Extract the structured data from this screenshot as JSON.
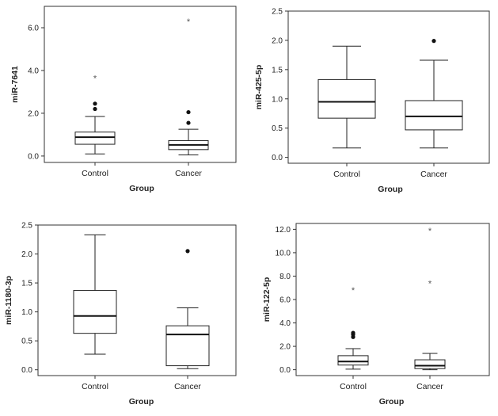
{
  "chart_data": [
    {
      "type": "box",
      "xlabel": "Group",
      "ylabel": "miR-7641",
      "categories": [
        "Control",
        "Cancer"
      ],
      "ylim": [
        -0.3,
        7.0
      ],
      "yticks": [
        0.0,
        2.0,
        4.0,
        6.0
      ],
      "ytick_labels": [
        "0.0",
        "2.0",
        "4.0",
        "6.0"
      ],
      "boxes": [
        {
          "name": "Control",
          "whisker_low": 0.1,
          "q1": 0.55,
          "median": 0.88,
          "q3": 1.12,
          "whisker_high": 1.85,
          "outliers": [
            2.2,
            2.45
          ],
          "extremes": [
            3.65
          ]
        },
        {
          "name": "Cancer",
          "whisker_low": 0.05,
          "q1": 0.3,
          "median": 0.52,
          "q3": 0.72,
          "whisker_high": 1.25,
          "outliers": [
            1.55,
            2.05
          ],
          "extremes": [
            6.3
          ]
        }
      ]
    },
    {
      "type": "box",
      "xlabel": "Group",
      "ylabel": "miR-425-5p",
      "categories": [
        "Control",
        "Cancer"
      ],
      "ylim": [
        -0.1,
        2.5
      ],
      "yticks": [
        0.0,
        0.5,
        1.0,
        1.5,
        2.0,
        2.5
      ],
      "ytick_labels": [
        "0.0",
        "0.5",
        "1.0",
        "1.5",
        "2.0",
        "2.5"
      ],
      "boxes": [
        {
          "name": "Control",
          "whisker_low": 0.16,
          "q1": 0.67,
          "median": 0.95,
          "q3": 1.33,
          "whisker_high": 1.9,
          "outliers": [],
          "extremes": []
        },
        {
          "name": "Cancer",
          "whisker_low": 0.16,
          "q1": 0.47,
          "median": 0.7,
          "q3": 0.97,
          "whisker_high": 1.66,
          "outliers": [
            1.99
          ],
          "extremes": []
        }
      ]
    },
    {
      "type": "box",
      "xlabel": "Group",
      "ylabel": "miR-1180-3p",
      "categories": [
        "Control",
        "Cancer"
      ],
      "ylim": [
        -0.1,
        2.5
      ],
      "yticks": [
        0.0,
        0.5,
        1.0,
        1.5,
        2.0,
        2.5
      ],
      "ytick_labels": [
        "0.0",
        "0.5",
        "1.0",
        "1.5",
        "2.0",
        "2.5"
      ],
      "boxes": [
        {
          "name": "Control",
          "whisker_low": 0.27,
          "q1": 0.63,
          "median": 0.93,
          "q3": 1.37,
          "whisker_high": 2.33,
          "outliers": [],
          "extremes": []
        },
        {
          "name": "Cancer",
          "whisker_low": 0.02,
          "q1": 0.07,
          "median": 0.61,
          "q3": 0.76,
          "whisker_high": 1.07,
          "outliers": [
            2.05
          ],
          "extremes": []
        }
      ]
    },
    {
      "type": "box",
      "xlabel": "Group",
      "ylabel": "miR-122-5p",
      "categories": [
        "Control",
        "Cancer"
      ],
      "ylim": [
        -0.5,
        12.5
      ],
      "yticks": [
        0.0,
        2.0,
        4.0,
        6.0,
        8.0,
        10.0,
        12.0
      ],
      "ytick_labels": [
        "0.0",
        "2.0",
        "4.0",
        "6.0",
        "8.0",
        "10.0",
        "12.0"
      ],
      "boxes": [
        {
          "name": "Control",
          "whisker_low": 0.05,
          "q1": 0.4,
          "median": 0.7,
          "q3": 1.2,
          "whisker_high": 1.8,
          "outliers": [
            2.8,
            3.0,
            3.15
          ],
          "extremes": [
            6.8
          ]
        },
        {
          "name": "Cancer",
          "whisker_low": 0.0,
          "q1": 0.1,
          "median": 0.35,
          "q3": 0.85,
          "whisker_high": 1.4,
          "outliers": [],
          "extremes": [
            7.4,
            11.9
          ]
        }
      ]
    }
  ]
}
